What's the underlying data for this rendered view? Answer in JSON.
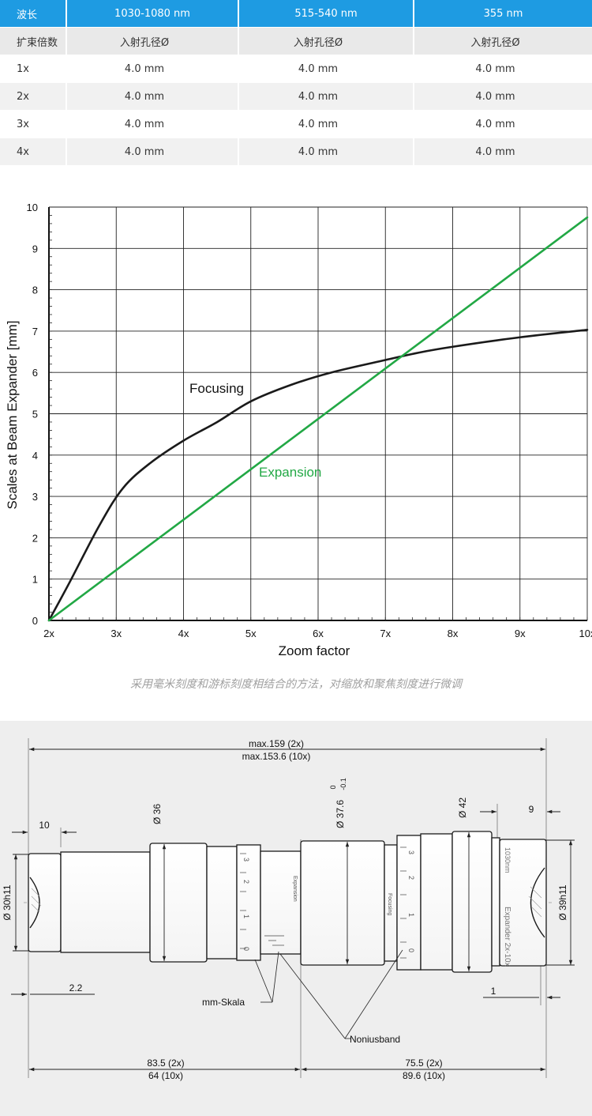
{
  "table": {
    "header": [
      "波长",
      "1030-1080 nm",
      "515-540 nm",
      "355 nm"
    ],
    "subheader": [
      "扩束倍数",
      "入射孔径Ø",
      "入射孔径Ø",
      "入射孔径Ø"
    ],
    "rows": [
      [
        "1x",
        "4.0 mm",
        "4.0 mm",
        "4.0 mm"
      ],
      [
        "2x",
        "4.0 mm",
        "4.0 mm",
        "4.0 mm"
      ],
      [
        "3x",
        "4.0 mm",
        "4.0 mm",
        "4.0 mm"
      ],
      [
        "4x",
        "4.0 mm",
        "4.0 mm",
        "4.0 mm"
      ]
    ]
  },
  "chart_data": {
    "type": "line",
    "xlabel": "Zoom factor",
    "ylabel": "Scales at Beam Expander [mm]",
    "xlim": [
      2,
      10
    ],
    "ylim": [
      0,
      10
    ],
    "x_ticks": [
      "2x",
      "3x",
      "4x",
      "5x",
      "6x",
      "7x",
      "8x",
      "9x",
      "10x"
    ],
    "y_ticks": [
      "0",
      "1",
      "2",
      "3",
      "4",
      "5",
      "6",
      "7",
      "8",
      "9",
      "10"
    ],
    "grid": true,
    "series": [
      {
        "name": "Focusing",
        "color": "#1a1a1a",
        "x": [
          2.0,
          2.3,
          2.75,
          3.1,
          3.5,
          4.0,
          4.5,
          5.0,
          5.6,
          6.2,
          7.0,
          7.5,
          8.0,
          9.0,
          10.0
        ],
        "y": [
          0.0,
          0.9,
          2.3,
          3.2,
          3.8,
          4.35,
          4.8,
          5.3,
          5.7,
          6.0,
          6.3,
          6.48,
          6.62,
          6.85,
          7.03
        ]
      },
      {
        "name": "Expansion",
        "color": "#22a845",
        "x": [
          2.0,
          10.0
        ],
        "y": [
          0.0,
          9.75
        ]
      }
    ],
    "annotations": [
      "Focusing",
      "Expansion"
    ]
  },
  "caption": "采用毫米刻度和游标刻度相结合的方法，对缩放和聚焦刻度进行微调",
  "drawing": {
    "dim_total_a": "max.159 (2x)",
    "dim_total_b": "max.153.6 (10x)",
    "dim_left_a": "83.5 (2x)",
    "dim_left_b": "64 (10x)",
    "dim_right_a": "75.5 (2x)",
    "dim_right_b": "89.6 (10x)",
    "dim_10": "10",
    "dim_9": "9",
    "dim_2_2": "2.2",
    "dim_1": "1",
    "dia_30": "Ø 30h11",
    "dia_36": "Ø 36",
    "dia_37_6": "Ø 37.6",
    "tol_upper": "0",
    "tol_lower": "-0.1",
    "dia_42": "Ø 42",
    "dia_39": "Ø 39h11",
    "label_mm": "mm-Skala",
    "label_nonius": "Noniusband",
    "scale_digits": [
      "3",
      "2",
      "1",
      "0"
    ],
    "engraved_focusing": "Focusing",
    "engraved_expansion": "Expansion",
    "engraved_model": "Expander 2x-10x",
    "engraved_wavelength": "1030nm",
    "colors": {
      "line": "#555555",
      "grey": "#888888"
    }
  }
}
